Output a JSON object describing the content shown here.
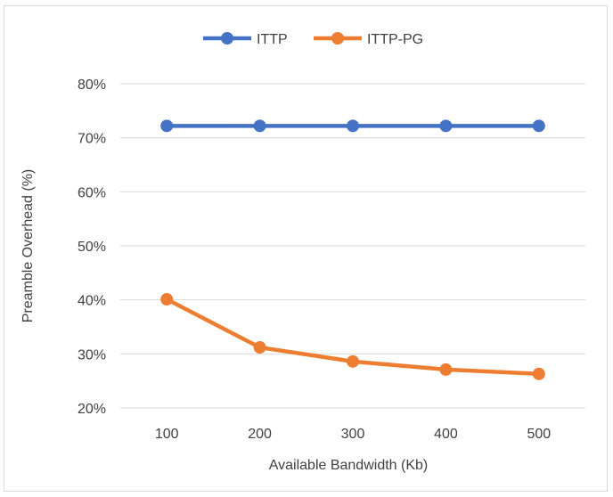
{
  "chart_data": {
    "type": "line",
    "title": "",
    "xlabel": "Available Bandwidth (Kb)",
    "ylabel": "Preamble Overhead (%)",
    "categories": [
      "100",
      "200",
      "300",
      "400",
      "500"
    ],
    "ylim": [
      20,
      80
    ],
    "yticks": [
      20,
      30,
      40,
      50,
      60,
      70,
      80
    ],
    "ytick_labels": [
      "20%",
      "30%",
      "40%",
      "50%",
      "60%",
      "70%",
      "80%"
    ],
    "grid": true,
    "legend_position": "top",
    "series": [
      {
        "name": "ITTP",
        "color": "#4472c4",
        "values": [
          72.2,
          72.2,
          72.2,
          72.2,
          72.2
        ]
      },
      {
        "name": "ITTP-PG",
        "color": "#ed7d31",
        "values": [
          40.1,
          31.2,
          28.6,
          27.1,
          26.3
        ]
      }
    ]
  }
}
